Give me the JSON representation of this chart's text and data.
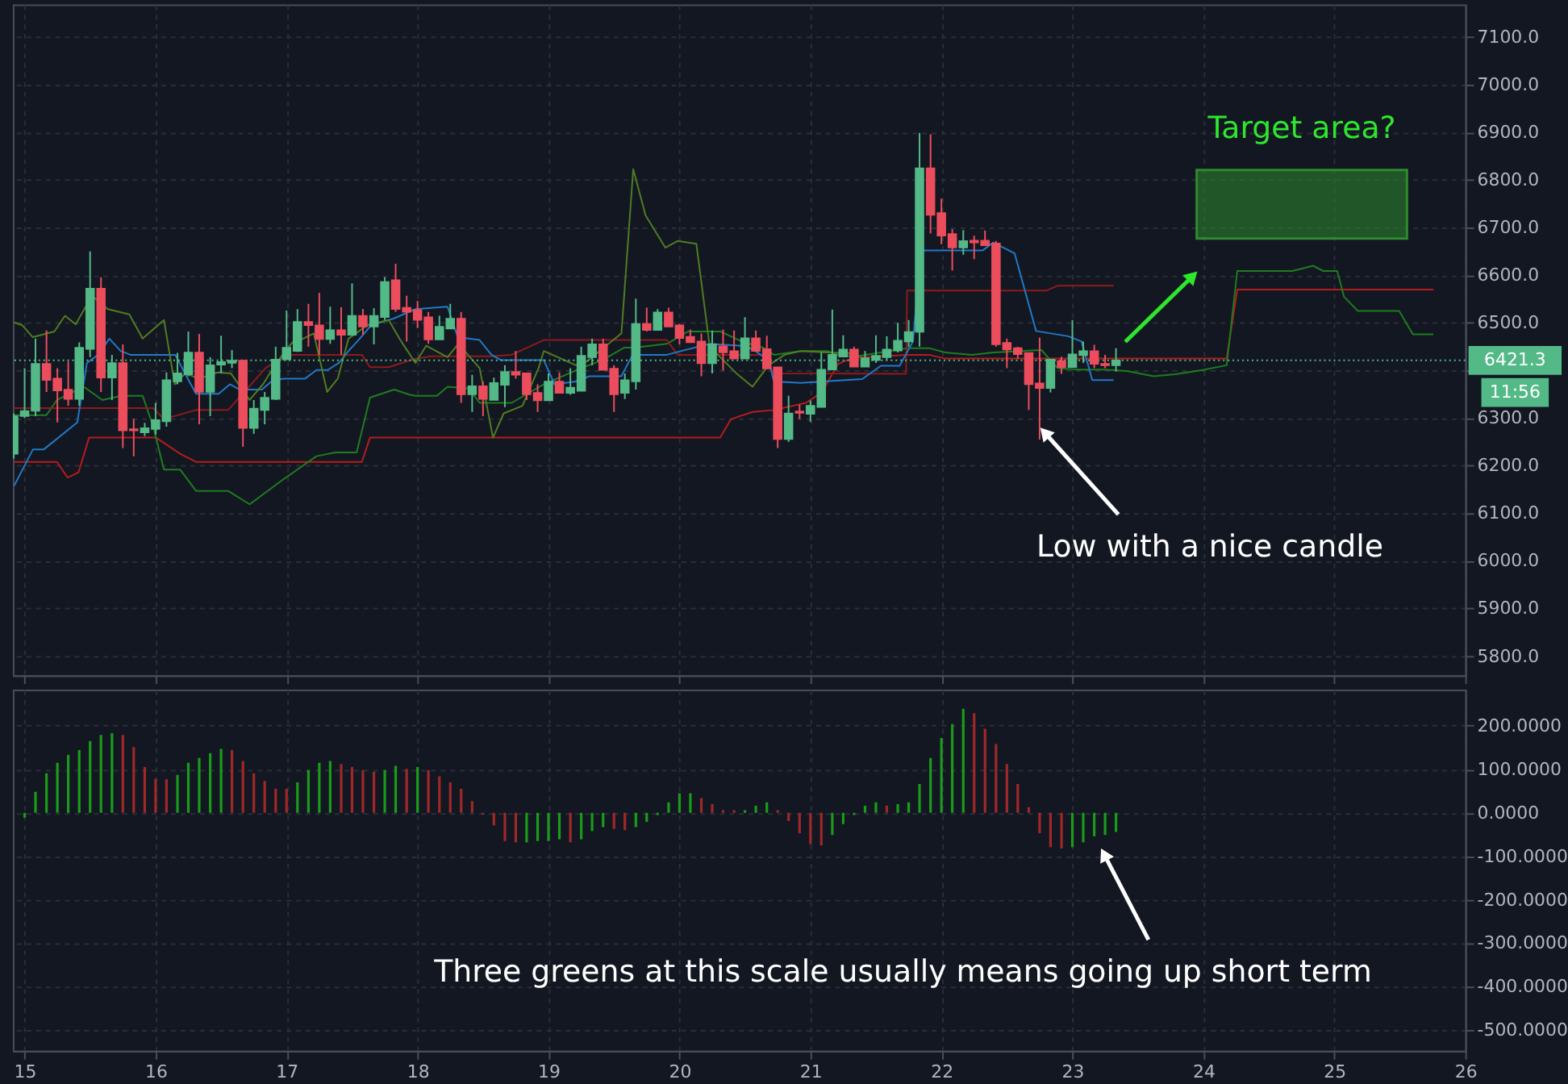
{
  "chart_data": [
    {
      "type": "candlestick",
      "x": [
        14.917,
        15,
        15.083,
        15.167,
        15.25,
        15.333,
        15.417,
        15.5,
        15.583,
        15.667,
        15.75,
        15.833,
        15.917,
        16,
        16.083,
        16.167,
        16.25,
        16.333,
        16.417,
        16.5,
        16.583,
        16.667,
        16.75,
        16.833,
        16.917,
        17,
        17.083,
        17.167,
        17.25,
        17.333,
        17.417,
        17.5,
        17.583,
        17.667,
        17.75,
        17.833,
        17.917,
        18,
        18.083,
        18.167,
        18.25,
        18.333,
        18.417,
        18.5,
        18.583,
        18.667,
        18.75,
        18.833,
        18.917,
        19,
        19.083,
        19.167,
        19.25,
        19.333,
        19.417,
        19.5,
        19.583,
        19.667,
        19.75,
        19.833,
        19.917,
        20,
        20.083,
        20.167,
        20.25,
        20.333,
        20.417,
        20.5,
        20.583,
        20.667,
        20.75,
        20.833,
        20.917,
        21,
        21.083,
        21.167,
        21.25,
        21.333,
        21.417,
        21.5,
        21.583,
        21.667,
        21.75,
        21.833,
        21.917,
        22,
        22.083,
        22.167,
        22.25,
        22.333,
        22.417,
        22.5,
        22.583,
        22.667,
        22.75,
        22.833,
        22.917,
        23,
        23.083,
        23.167,
        23.25,
        23.333
      ],
      "ohlc": [
        [
          6225,
          6310,
          6215,
          6304
        ],
        [
          6304,
          6405,
          6300,
          6315
        ],
        [
          6315,
          6467,
          6304,
          6414
        ],
        [
          6414,
          6484,
          6355,
          6380
        ],
        [
          6383,
          6405,
          6291,
          6358
        ],
        [
          6360,
          6419,
          6326,
          6340
        ],
        [
          6340,
          6459,
          6326,
          6448
        ],
        [
          6445,
          6650,
          6428,
          6572
        ],
        [
          6572,
          6596,
          6355,
          6385
        ],
        [
          6385,
          6433,
          6338,
          6416
        ],
        [
          6416,
          6455,
          6237,
          6274
        ],
        [
          6277,
          6298,
          6220,
          6274
        ],
        [
          6270,
          6290,
          6262,
          6279
        ],
        [
          6277,
          6332,
          6265,
          6296
        ],
        [
          6293,
          6396,
          6282,
          6380
        ],
        [
          6377,
          6437,
          6371,
          6394
        ],
        [
          6392,
          6482,
          6388,
          6438
        ],
        [
          6438,
          6477,
          6287,
          6355
        ],
        [
          6355,
          6428,
          6304,
          6411
        ],
        [
          6412,
          6473,
          6394,
          6418
        ],
        [
          6416,
          6443,
          6405,
          6421
        ],
        [
          6421,
          6423,
          6240,
          6279
        ],
        [
          6279,
          6338,
          6267,
          6320
        ],
        [
          6317,
          6355,
          6287,
          6343
        ],
        [
          6340,
          6450,
          6338,
          6423
        ],
        [
          6423,
          6526,
          6423,
          6448
        ],
        [
          6441,
          6529,
          6439,
          6502
        ],
        [
          6502,
          6540,
          6450,
          6495
        ],
        [
          6495,
          6563,
          6433,
          6466
        ],
        [
          6466,
          6534,
          6456,
          6485
        ],
        [
          6485,
          6533,
          6433,
          6475
        ],
        [
          6475,
          6583,
          6473,
          6515
        ],
        [
          6515,
          6529,
          6475,
          6492
        ],
        [
          6492,
          6531,
          6455,
          6515
        ],
        [
          6512,
          6596,
          6506,
          6586
        ],
        [
          6590,
          6624,
          6523,
          6529
        ],
        [
          6532,
          6557,
          6461,
          6523
        ],
        [
          6527,
          6546,
          6489,
          6506
        ],
        [
          6512,
          6523,
          6456,
          6465
        ],
        [
          6465,
          6515,
          6465,
          6492
        ],
        [
          6488,
          6540,
          6488,
          6509
        ],
        [
          6509,
          6523,
          6332,
          6350
        ],
        [
          6350,
          6391,
          6313,
          6367
        ],
        [
          6367,
          6377,
          6304,
          6340
        ],
        [
          6338,
          6385,
          6338,
          6374
        ],
        [
          6370,
          6411,
          6323,
          6397
        ],
        [
          6397,
          6441,
          6383,
          6391
        ],
        [
          6394,
          6394,
          6338,
          6350
        ],
        [
          6353,
          6371,
          6313,
          6337
        ],
        [
          6337,
          6394,
          6337,
          6377
        ],
        [
          6377,
          6396,
          6353,
          6353
        ],
        [
          6353,
          6405,
          6349,
          6364
        ],
        [
          6357,
          6450,
          6357,
          6431
        ],
        [
          6428,
          6467,
          6411,
          6455
        ],
        [
          6455,
          6467,
          6401,
          6401
        ],
        [
          6404,
          6411,
          6313,
          6350
        ],
        [
          6353,
          6394,
          6340,
          6380
        ],
        [
          6377,
          6551,
          6360,
          6498
        ],
        [
          6498,
          6532,
          6482,
          6485
        ],
        [
          6485,
          6529,
          6485,
          6522
        ],
        [
          6522,
          6532,
          6492,
          6492
        ],
        [
          6495,
          6498,
          6455,
          6468
        ],
        [
          6471,
          6486,
          6459,
          6459
        ],
        [
          6461,
          6478,
          6388,
          6415
        ],
        [
          6415,
          6484,
          6394,
          6455
        ],
        [
          6451,
          6486,
          6400,
          6438
        ],
        [
          6441,
          6484,
          6425,
          6425
        ],
        [
          6425,
          6512,
          6425,
          6468
        ],
        [
          6468,
          6484,
          6441,
          6441
        ],
        [
          6445,
          6473,
          6404,
          6404
        ],
        [
          6407,
          6407,
          6237,
          6256
        ],
        [
          6256,
          6347,
          6250,
          6310
        ],
        [
          6314,
          6328,
          6298,
          6311
        ],
        [
          6309,
          6337,
          6292,
          6326
        ],
        [
          6323,
          6438,
          6323,
          6402
        ],
        [
          6402,
          6528,
          6402,
          6433
        ],
        [
          6429,
          6474,
          6429,
          6444
        ],
        [
          6444,
          6450,
          6408,
          6408
        ],
        [
          6408,
          6441,
          6408,
          6426
        ],
        [
          6422,
          6474,
          6416,
          6431
        ],
        [
          6428,
          6472,
          6422,
          6444
        ],
        [
          6442,
          6500,
          6438,
          6463
        ],
        [
          6461,
          6506,
          6450,
          6481
        ],
        [
          6481,
          6899,
          6450,
          6825
        ],
        [
          6825,
          6896,
          6688,
          6727
        ],
        [
          6731,
          6761,
          6665,
          6683
        ],
        [
          6687,
          6697,
          6610,
          6658
        ],
        [
          6658,
          6695,
          6643,
          6672
        ],
        [
          6673,
          6683,
          6634,
          6669
        ],
        [
          6673,
          6694,
          6663,
          6663
        ],
        [
          6667,
          6672,
          6450,
          6455
        ],
        [
          6458,
          6467,
          6405,
          6444
        ],
        [
          6447,
          6450,
          6425,
          6434
        ],
        [
          6437,
          6437,
          6317,
          6371
        ],
        [
          6373,
          6469,
          6255,
          6363
        ],
        [
          6363,
          6423,
          6354,
          6423
        ],
        [
          6420,
          6429,
          6393,
          6407
        ],
        [
          6407,
          6506,
          6407,
          6434
        ],
        [
          6432,
          6461,
          6416,
          6441
        ],
        [
          6441,
          6454,
          6405,
          6414
        ],
        [
          6414,
          6433,
          6405,
          6411
        ],
        [
          6411,
          6447,
          6398,
          6421.3
        ]
      ],
      "colors": [
        "#53b987",
        "#53b987",
        "#53b987",
        "#eb4d5c",
        "#eb4d5c",
        "#eb4d5c",
        "#53b987",
        "#53b987",
        "#eb4d5c",
        "#53b987",
        "#eb4d5c",
        "#eb4d5c",
        "#53b987",
        "#53b987",
        "#53b987",
        "#53b987",
        "#53b987",
        "#eb4d5c",
        "#53b987",
        "#53b987",
        "#53b987",
        "#eb4d5c",
        "#53b987",
        "#53b987",
        "#53b987",
        "#53b987",
        "#53b987",
        "#eb4d5c",
        "#eb4d5c",
        "#53b987",
        "#eb4d5c",
        "#53b987",
        "#eb4d5c",
        "#53b987",
        "#53b987",
        "#eb4d5c",
        "#eb4d5c",
        "#eb4d5c",
        "#eb4d5c",
        "#53b987",
        "#53b987",
        "#eb4d5c",
        "#53b987",
        "#eb4d5c",
        "#53b987",
        "#53b987",
        "#eb4d5c",
        "#eb4d5c",
        "#eb4d5c",
        "#53b987",
        "#eb4d5c",
        "#53b987",
        "#53b987",
        "#53b987",
        "#eb4d5c",
        "#eb4d5c",
        "#53b987",
        "#53b987",
        "#eb4d5c",
        "#53b987",
        "#eb4d5c",
        "#eb4d5c",
        "#eb4d5c",
        "#eb4d5c",
        "#53b987",
        "#eb4d5c",
        "#eb4d5c",
        "#53b987",
        "#eb4d5c",
        "#eb4d5c",
        "#eb4d5c",
        "#53b987",
        "#eb4d5c",
        "#53b987",
        "#53b987",
        "#53b987",
        "#53b987",
        "#eb4d5c",
        "#53b987",
        "#53b987",
        "#53b987",
        "#53b987",
        "#53b987",
        "#53b987",
        "#eb4d5c",
        "#eb4d5c",
        "#eb4d5c",
        "#53b987",
        "#eb4d5c",
        "#eb4d5c",
        "#eb4d5c",
        "#eb4d5c",
        "#eb4d5c",
        "#eb4d5c",
        "#eb4d5c",
        "#53b987",
        "#eb4d5c",
        "#53b987",
        "#53b987",
        "#eb4d5c",
        "#eb4d5c",
        "#53b987"
      ],
      "series": [
        {
          "type": "line",
          "color": "#b71c1c",
          "x": [
            14.92,
            15.247,
            15.329,
            15.411,
            15.492,
            16.003,
            16.064,
            16.187,
            16.309,
            17.575,
            17.637,
            17.984,
            20.311,
            20.394,
            20.558,
            20.721,
            20.966,
            21.088,
            21.211,
            21.333,
            21.742,
            21.906,
            22.029,
            24.178,
            24.259,
            25.757
          ],
          "values": [
            6208,
            6208,
            6175,
            6186,
            6259,
            6259,
            6248,
            6225,
            6208,
            6208,
            6259,
            6259,
            6259,
            6298,
            6313,
            6317,
            6332,
            6354,
            6414,
            6427,
            6433,
            6433,
            6425,
            6425,
            6570,
            6570
          ]
        },
        {
          "type": "line",
          "color": "#1e7d1e",
          "x": [
            14.92,
            15.165,
            15.247,
            15.451,
            15.594,
            15.737,
            15.901,
            15.982,
            16.064,
            16.187,
            16.309,
            16.554,
            16.718,
            16.963,
            17.228,
            17.371,
            17.535,
            17.637,
            17.821,
            17.943,
            17.984,
            18.148,
            18.229,
            18.392,
            18.474,
            18.719,
            18.964,
            19.25,
            19.414,
            19.577,
            19.659,
            19.904,
            20.066,
            20.311,
            20.475,
            20.639,
            20.721,
            20.925,
            21.13,
            21.211,
            21.333,
            21.742,
            21.906,
            22.029,
            22.233,
            22.396,
            22.764,
            22.886,
            23.049,
            23.253,
            23.417,
            23.621,
            23.786,
            23.995,
            24.178,
            24.259,
            24.68,
            24.838,
            24.916,
            25.022,
            25.074,
            25.18,
            25.495,
            25.6,
            25.757
          ],
          "values": [
            6306,
            6306,
            6338,
            6366,
            6338,
            6347,
            6347,
            6282,
            6192,
            6192,
            6147,
            6147,
            6119,
            6169,
            6220,
            6228,
            6228,
            6343,
            6360,
            6349,
            6347,
            6347,
            6366,
            6362,
            6332,
            6332,
            6371,
            6405,
            6422,
            6448,
            6448,
            6456,
            6482,
            6482,
            6461,
            6448,
            6433,
            6441,
            6441,
            6433,
            6429,
            6447,
            6447,
            6438,
            6433,
            6438,
            6443,
            6405,
            6402,
            6402,
            6399,
            6388,
            6392,
            6401,
            6411,
            6609,
            6609,
            6620,
            6609,
            6609,
            6555,
            6525,
            6525,
            6476,
            6476
          ]
        },
        {
          "type": "line",
          "color": "#8e1b1b",
          "x": [
            14.92,
            15.982,
            16.064,
            16.309,
            16.554,
            16.84,
            17.004,
            17.575,
            17.637,
            17.78,
            17.984,
            18.107,
            18.556,
            18.719,
            18.964,
            19.904,
            19.985,
            20.639,
            20.721,
            21.73,
            21.738,
            22.804,
            22.886,
            23.315
          ],
          "values": [
            6321,
            6321,
            6298,
            6317,
            6317,
            6405,
            6433,
            6433,
            6407,
            6407,
            6425,
            6430,
            6430,
            6433,
            6464,
            6464,
            6433,
            6433,
            6394,
            6393,
            6568,
            6568,
            6578,
            6578
          ]
        },
        {
          "type": "line",
          "color": "#2079c7",
          "x": [
            14.92,
            15.063,
            15.145,
            15.402,
            15.476,
            15.562,
            15.647,
            15.733,
            15.807,
            16.15,
            16.236,
            16.309,
            16.481,
            16.567,
            16.64,
            16.812,
            16.897,
            16.983,
            17.142,
            17.228,
            17.314,
            17.4,
            17.473,
            17.559,
            17.645,
            17.817,
            17.984,
            18.229,
            18.307,
            18.474,
            18.564,
            18.637,
            18.964,
            19.046,
            19.21,
            19.311,
            19.556,
            19.642,
            19.904,
            19.985,
            20.23,
            20.475,
            20.558,
            20.68,
            20.721,
            20.925,
            21.395,
            21.538,
            21.681,
            21.783,
            21.844,
            22.314,
            22.396,
            22.559,
            22.723,
            22.968,
            23.07,
            23.152,
            23.315
          ],
          "values": [
            6158,
            6234,
            6234,
            6291,
            6416,
            6433,
            6467,
            6441,
            6433,
            6433,
            6388,
            6351,
            6351,
            6371,
            6360,
            6360,
            6380,
            6383,
            6383,
            6401,
            6401,
            6416,
            6441,
            6467,
            6495,
            6509,
            6529,
            6534,
            6470,
            6464,
            6433,
            6422,
            6422,
            6371,
            6377,
            6388,
            6388,
            6433,
            6433,
            6439,
            6456,
            6452,
            6445,
            6422,
            6377,
            6374,
            6382,
            6410,
            6410,
            6461,
            6652,
            6652,
            6669,
            6646,
            6483,
            6472,
            6461,
            6380,
            6380
          ]
        },
        {
          "type": "line",
          "color": "#4f7d22",
          "x": [
            14.92,
            14.982,
            15.063,
            15.227,
            15.308,
            15.39,
            15.513,
            15.635,
            15.799,
            15.901,
            16.064,
            16.146,
            16.227,
            16.33,
            16.473,
            16.575,
            16.718,
            16.82,
            16.922,
            17.044,
            17.126,
            17.208,
            17.31,
            17.391,
            17.473,
            17.616,
            17.78,
            17.862,
            17.902,
            17.984,
            18.066,
            18.229,
            18.311,
            18.474,
            18.576,
            18.658,
            18.801,
            18.924,
            18.964,
            19.21,
            19.292,
            19.557,
            19.647,
            19.741,
            19.892,
            19.985,
            20.129,
            20.231,
            20.435,
            20.558,
            20.68,
            20.803,
            20.925,
            21.13,
            21.333
          ],
          "values": [
            6501,
            6495,
            6470,
            6482,
            6515,
            6497,
            6557,
            6529,
            6518,
            6467,
            6506,
            6371,
            6394,
            6383,
            6396,
            6394,
            6338,
            6371,
            6416,
            6459,
            6467,
            6478,
            6355,
            6383,
            6467,
            6495,
            6506,
            6467,
            6450,
            6416,
            6452,
            6428,
            6456,
            6405,
            6259,
            6310,
            6326,
            6405,
            6441,
            6411,
            6419,
            6478,
            6823,
            6726,
            6658,
            6672,
            6666,
            6450,
            6394,
            6366,
            6411,
            6433,
            6441,
            6438,
            6436
          ]
        },
        {
          "type": "bar",
          "color": "#2e8b2e",
          "x": [
            24.752
          ],
          "base": [
            6677
          ],
          "values": [
            144
          ]
        }
      ],
      "xlim": [
        14.91,
        26.0
      ],
      "xticks": [
        15,
        16,
        17,
        18,
        19,
        20,
        21,
        22,
        23,
        24,
        25,
        26
      ],
      "ylim": [
        5760,
        7169
      ],
      "yticks": [
        {
          "value": 5800,
          "label": "5800.0"
        },
        {
          "value": 5900,
          "label": "5900.0"
        },
        {
          "value": 6000,
          "label": "6000.0"
        },
        {
          "value": 6100,
          "label": "6100.0"
        },
        {
          "value": 6200,
          "label": "6200.0"
        },
        {
          "value": 6300,
          "label": "6300.0"
        },
        {
          "value": 6400,
          "label": null
        },
        {
          "value": 6500,
          "label": "6500.0"
        },
        {
          "value": 6600,
          "label": "6600.0"
        },
        {
          "value": 6700,
          "label": "6700.0"
        },
        {
          "value": 6800,
          "label": "6800.0"
        },
        {
          "value": 6900,
          "label": "6900.0"
        },
        {
          "value": 7000,
          "label": "7000.0"
        },
        {
          "value": 7100,
          "label": "7100.0"
        }
      ],
      "grid": true,
      "tick_labels": "y",
      "ref_lines": [
        {
          "axis": "y",
          "value": 6421.3,
          "label": "6421.3",
          "color": "#53b987",
          "line_style": "dotted"
        }
      ],
      "annotations": [
        {
          "text": "Target area?",
          "x": 24.752,
          "y": 6821
        },
        {
          "text": "Low with a nice candle",
          "x": 22.8,
          "y": 6266
        },
        "11:56"
      ]
    },
    {
      "type": "bar",
      "x": [
        15,
        15.083,
        15.167,
        15.25,
        15.333,
        15.417,
        15.5,
        15.583,
        15.667,
        15.75,
        15.833,
        15.917,
        16,
        16.083,
        16.167,
        16.25,
        16.333,
        16.417,
        16.5,
        16.583,
        16.667,
        16.75,
        16.833,
        16.917,
        17,
        17.083,
        17.167,
        17.25,
        17.333,
        17.417,
        17.5,
        17.583,
        17.667,
        17.75,
        17.833,
        17.917,
        18,
        18.083,
        18.167,
        18.25,
        18.333,
        18.417,
        18.5,
        18.583,
        18.667,
        18.75,
        18.833,
        18.917,
        19,
        19.083,
        19.167,
        19.25,
        19.333,
        19.417,
        19.5,
        19.583,
        19.667,
        19.75,
        19.833,
        19.917,
        20,
        20.083,
        20.167,
        20.25,
        20.333,
        20.417,
        20.5,
        20.583,
        20.667,
        20.75,
        20.833,
        20.917,
        21,
        21.083,
        21.167,
        21.25,
        21.333,
        21.417,
        21.5,
        21.583,
        21.667,
        21.75,
        21.833,
        21.917,
        22,
        22.083,
        22.167,
        22.25,
        22.333,
        22.417,
        22.5,
        22.583,
        22.667,
        22.75,
        22.833,
        22.917,
        23,
        23.083,
        23.167,
        23.25,
        23.333
      ],
      "values": [
        -11,
        48,
        91,
        115,
        133,
        144,
        165,
        179,
        183,
        179,
        151,
        105,
        78,
        77,
        87,
        115,
        126,
        137,
        147,
        144,
        119,
        91,
        73,
        55,
        55,
        70,
        98,
        115,
        119,
        112,
        105,
        98,
        94,
        98,
        108,
        101,
        105,
        98,
        84,
        70,
        55,
        27,
        -4,
        -29,
        -65,
        -68,
        -68,
        -65,
        -65,
        -61,
        -68,
        -61,
        -42,
        -33,
        -37,
        -40,
        -33,
        -21,
        -5,
        24,
        45,
        45,
        34,
        20,
        6,
        6,
        6,
        16,
        24,
        6,
        -19,
        -47,
        -72,
        -75,
        -51,
        -26,
        -5,
        16,
        24,
        16,
        20,
        24,
        66,
        126,
        172,
        204,
        239,
        229,
        193,
        158,
        112,
        66,
        13,
        -47,
        -79,
        -82,
        -79,
        -68,
        -54,
        -51,
        -44
      ],
      "colors": [
        "#1a9c1a",
        "#1a9c1a",
        "#1a9c1a",
        "#1a9c1a",
        "#1a9c1a",
        "#1a9c1a",
        "#1a9c1a",
        "#1a9c1a",
        "#1a9c1a",
        "#a12828",
        "#a12828",
        "#a12828",
        "#a12828",
        "#a12828",
        "#1a9c1a",
        "#1a9c1a",
        "#1a9c1a",
        "#1a9c1a",
        "#1a9c1a",
        "#a12828",
        "#a12828",
        "#a12828",
        "#a12828",
        "#a12828",
        "#a12828",
        "#1a9c1a",
        "#1a9c1a",
        "#1a9c1a",
        "#1a9c1a",
        "#a12828",
        "#a12828",
        "#a12828",
        "#a12828",
        "#1a9c1a",
        "#1a9c1a",
        "#a12828",
        "#1a9c1a",
        "#a12828",
        "#a12828",
        "#a12828",
        "#a12828",
        "#a12828",
        "#a12828",
        "#a12828",
        "#a12828",
        "#a12828",
        "#1a9c1a",
        "#1a9c1a",
        "#1a9c1a",
        "#1a9c1a",
        "#a12828",
        "#1a9c1a",
        "#1a9c1a",
        "#1a9c1a",
        "#a12828",
        "#a12828",
        "#1a9c1a",
        "#1a9c1a",
        "#1a9c1a",
        "#1a9c1a",
        "#1a9c1a",
        "#1a9c1a",
        "#a12828",
        "#a12828",
        "#a12828",
        "#a12828",
        "#1a9c1a",
        "#1a9c1a",
        "#1a9c1a",
        "#a12828",
        "#a12828",
        "#a12828",
        "#a12828",
        "#a12828",
        "#1a9c1a",
        "#1a9c1a",
        "#1a9c1a",
        "#1a9c1a",
        "#1a9c1a",
        "#a12828",
        "#1a9c1a",
        "#1a9c1a",
        "#1a9c1a",
        "#1a9c1a",
        "#1a9c1a",
        "#1a9c1a",
        "#1a9c1a",
        "#a12828",
        "#a12828",
        "#a12828",
        "#a12828",
        "#a12828",
        "#a12828",
        "#a12828",
        "#a12828",
        "#a12828",
        "#1a9c1a",
        "#1a9c1a",
        "#1a9c1a",
        "#1a9c1a",
        "#1a9c1a"
      ],
      "xlim": [
        14.91,
        26.0
      ],
      "xticks": [
        15,
        16,
        17,
        18,
        19,
        20,
        21,
        22,
        23,
        24,
        25,
        26
      ],
      "ylim": [
        -547,
        283
      ],
      "yticks": [
        {
          "value": -500,
          "label": "-500.0000"
        },
        {
          "value": -400,
          "label": "-400.0000"
        },
        {
          "value": -300,
          "label": "-300.0000"
        },
        {
          "value": -200,
          "label": "-200.0000"
        },
        {
          "value": -100,
          "label": "-100.0000"
        },
        {
          "value": 0,
          "label": "0.0000"
        },
        {
          "value": 100,
          "label": "100.0000"
        },
        {
          "value": 200,
          "label": "200.0000"
        }
      ],
      "grid": true,
      "annotations": [
        {
          "text": "Three greens at this scale usually means going up short term",
          "x": 23.25,
          "y": -100
        }
      ]
    }
  ]
}
